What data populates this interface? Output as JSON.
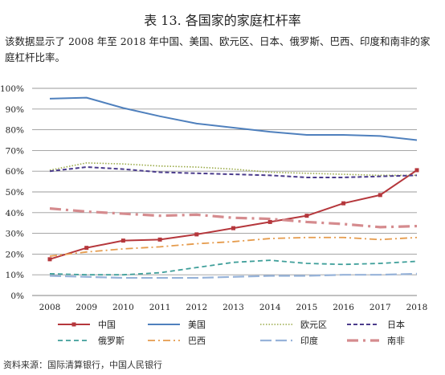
{
  "page": {
    "title": "表 13. 各国家的家庭杠杆率",
    "description": "该数据显示了 2008 年至 2018 年中国、美国、欧元区、日本、俄罗斯、巴西、印度和南非的家庭杠杆比率。",
    "source": "资料来源：国际清算银行，中国人民银行"
  },
  "colors": {
    "china": "#b5373c",
    "usa": "#4f80bd",
    "euro": "#9aaa48",
    "japan": "#4b3c8c",
    "russia": "#6f71a8",
    "brazil": "#e59b4c",
    "india": "#97b3d9",
    "southafrica": "#d58b8e",
    "russia_dash": "#3f9f9a",
    "grid": "#9a9a9a"
  },
  "chart_data": {
    "type": "line",
    "x": [
      "2008",
      "2009",
      "2010",
      "2011",
      "2012",
      "2013",
      "2014",
      "2015",
      "2016",
      "2017",
      "2018"
    ],
    "ylim": [
      0,
      100
    ],
    "yticks": [
      "0%",
      "10%",
      "20%",
      "30%",
      "40%",
      "50%",
      "60%",
      "70%",
      "80%",
      "90%",
      "100%"
    ],
    "grid": true,
    "legend_position": "bottom",
    "series": [
      {
        "name": "中国",
        "values": [
          17.5,
          23,
          26.5,
          27,
          29.5,
          32.5,
          35.5,
          38.5,
          44.5,
          48.5,
          60.5
        ]
      },
      {
        "name": "美国",
        "values": [
          95,
          95.5,
          90.5,
          86.5,
          83,
          81,
          79,
          77.5,
          77.5,
          77,
          75
        ]
      },
      {
        "name": "欧元区",
        "values": [
          60.5,
          64,
          63.5,
          62.5,
          62,
          61,
          59.5,
          59,
          58.5,
          58,
          58
        ]
      },
      {
        "name": "日本",
        "values": [
          60,
          62,
          61,
          59.5,
          59,
          58.5,
          58,
          57,
          57,
          57.5,
          58
        ]
      },
      {
        "name": "俄罗斯",
        "values": [
          10.5,
          10,
          10,
          11,
          13.5,
          16,
          17,
          15.5,
          15,
          15.5,
          16.5
        ]
      },
      {
        "name": "巴西",
        "values": [
          19,
          21,
          22.5,
          23.5,
          25,
          26,
          27.5,
          28,
          28,
          27,
          28
        ]
      },
      {
        "name": "印度",
        "values": [
          9.5,
          9,
          8.5,
          8.5,
          8.5,
          9,
          9.5,
          9.5,
          10,
          10,
          10.5
        ]
      },
      {
        "name": "南非",
        "values": [
          42,
          40.5,
          39.5,
          38.5,
          39,
          37.5,
          37,
          35.5,
          34.5,
          33,
          33.5
        ]
      }
    ]
  }
}
